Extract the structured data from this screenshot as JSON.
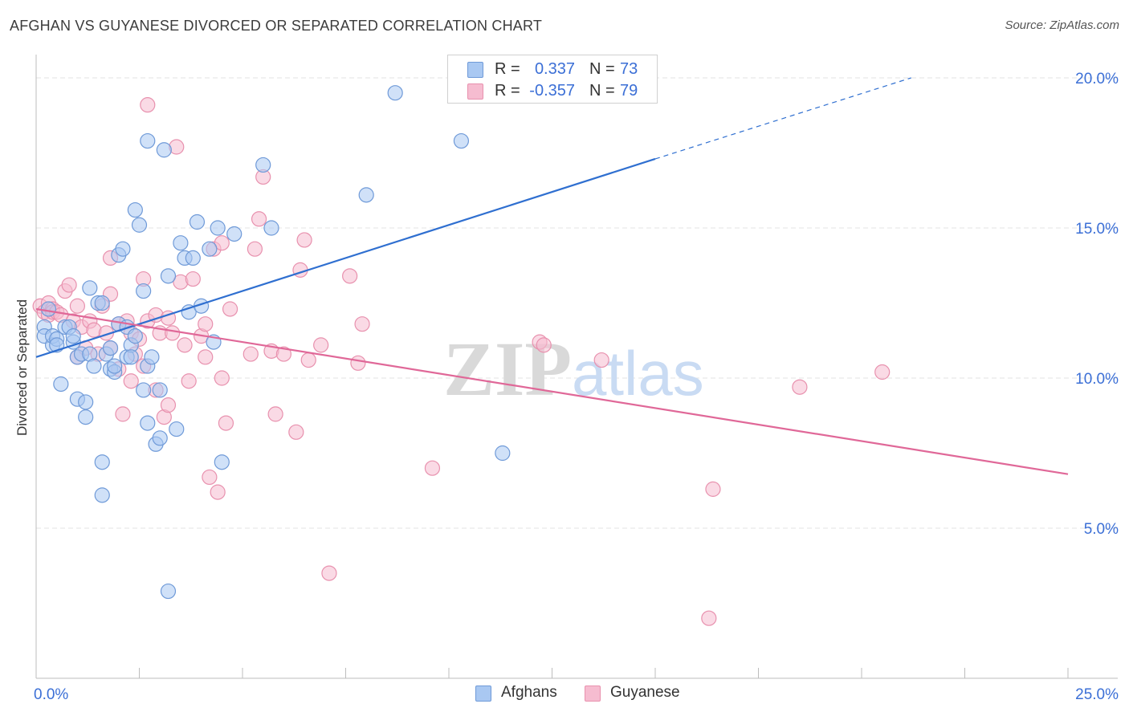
{
  "title": "AFGHAN VS GUYANESE DIVORCED OR SEPARATED CORRELATION CHART",
  "source": "Source: ZipAtlas.com",
  "watermark": {
    "zip": "ZIP",
    "atlas": "atlas"
  },
  "colors": {
    "afghans_fill": "#a9c8f2",
    "afghans_stroke": "#6f9ad8",
    "afghans_line": "#2f6fd0",
    "guyanese_fill": "#f6bcd0",
    "guyanese_stroke": "#e891ae",
    "guyanese_line": "#e06898",
    "tick_label": "#3b6fd6",
    "grid": "#e3e3e3"
  },
  "legend_top": [
    {
      "r_label": "R =",
      "r_value": "0.337",
      "n_label": "N =",
      "n_value": "73"
    },
    {
      "r_label": "R =",
      "r_value": "-0.357",
      "n_label": "N =",
      "n_value": "79"
    }
  ],
  "legend_bottom": [
    "Afghans",
    "Guyanese"
  ],
  "chart_data": {
    "type": "scatter",
    "title": "AFGHAN VS GUYANESE DIVORCED OR SEPARATED CORRELATION CHART",
    "xlabel": "",
    "ylabel": "Divorced or Separated",
    "xlim": [
      0,
      25
    ],
    "ylim": [
      0,
      20.5
    ],
    "x_ticks": [
      0,
      25
    ],
    "x_tick_labels": [
      "0.0%",
      "25.0%"
    ],
    "y_ticks": [
      5,
      10,
      15,
      20
    ],
    "y_tick_labels": [
      "5.0%",
      "10.0%",
      "15.0%",
      "20.0%"
    ],
    "grid": true,
    "legend_placement": "top-center",
    "series": [
      {
        "name": "Afghans",
        "r": 0.337,
        "n": 73,
        "trend": {
          "x0": 0,
          "y0": 10.7,
          "x1": 15,
          "y1": 17.3,
          "dashed_to_x": 21.2,
          "dashed_to_y": 20.0
        },
        "points": [
          [
            0.2,
            11.7
          ],
          [
            0.2,
            11.4
          ],
          [
            0.3,
            12.3
          ],
          [
            0.4,
            11.1
          ],
          [
            0.4,
            11.4
          ],
          [
            0.5,
            11.3
          ],
          [
            0.5,
            11.1
          ],
          [
            0.6,
            9.8
          ],
          [
            0.7,
            11.7
          ],
          [
            0.8,
            11.7
          ],
          [
            0.9,
            11.2
          ],
          [
            0.9,
            11.4
          ],
          [
            1.0,
            10.7
          ],
          [
            1.0,
            9.3
          ],
          [
            1.1,
            10.8
          ],
          [
            1.2,
            9.2
          ],
          [
            1.2,
            8.7
          ],
          [
            1.3,
            13.0
          ],
          [
            1.3,
            10.8
          ],
          [
            1.4,
            10.4
          ],
          [
            1.5,
            12.5
          ],
          [
            1.6,
            12.5
          ],
          [
            1.6,
            7.2
          ],
          [
            1.6,
            6.1
          ],
          [
            1.7,
            10.8
          ],
          [
            1.8,
            10.3
          ],
          [
            1.8,
            11.0
          ],
          [
            1.9,
            10.2
          ],
          [
            1.9,
            10.4
          ],
          [
            2.0,
            11.8
          ],
          [
            2.0,
            14.1
          ],
          [
            2.1,
            14.3
          ],
          [
            2.2,
            10.7
          ],
          [
            2.2,
            11.7
          ],
          [
            2.3,
            11.1
          ],
          [
            2.3,
            10.7
          ],
          [
            2.4,
            11.4
          ],
          [
            2.4,
            15.6
          ],
          [
            2.5,
            15.1
          ],
          [
            2.6,
            12.9
          ],
          [
            2.6,
            9.6
          ],
          [
            2.7,
            8.5
          ],
          [
            2.7,
            17.9
          ],
          [
            2.7,
            10.4
          ],
          [
            2.8,
            10.7
          ],
          [
            2.9,
            7.8
          ],
          [
            3.0,
            8.0
          ],
          [
            3.0,
            9.6
          ],
          [
            3.1,
            17.6
          ],
          [
            3.2,
            13.4
          ],
          [
            3.2,
            2.9
          ],
          [
            3.4,
            8.3
          ],
          [
            3.5,
            14.5
          ],
          [
            3.6,
            14.0
          ],
          [
            3.7,
            12.2
          ],
          [
            3.8,
            14.0
          ],
          [
            3.9,
            15.2
          ],
          [
            4.0,
            12.4
          ],
          [
            4.2,
            14.3
          ],
          [
            4.3,
            11.2
          ],
          [
            4.4,
            15.0
          ],
          [
            4.5,
            7.2
          ],
          [
            4.8,
            14.8
          ],
          [
            5.5,
            17.1
          ],
          [
            5.7,
            15.0
          ],
          [
            8.0,
            16.1
          ],
          [
            8.7,
            19.5
          ],
          [
            10.3,
            17.9
          ],
          [
            11.3,
            7.5
          ]
        ]
      },
      {
        "name": "Guyanese",
        "r": -0.357,
        "n": 79,
        "trend": {
          "x0": 0,
          "y0": 12.3,
          "x1": 25,
          "y1": 6.8
        },
        "points": [
          [
            0.1,
            12.4
          ],
          [
            0.2,
            12.2
          ],
          [
            0.3,
            12.1
          ],
          [
            0.3,
            12.5
          ],
          [
            0.4,
            12.3
          ],
          [
            0.4,
            12.2
          ],
          [
            0.5,
            12.2
          ],
          [
            0.6,
            12.1
          ],
          [
            0.7,
            12.9
          ],
          [
            0.8,
            13.1
          ],
          [
            0.9,
            11.9
          ],
          [
            1.0,
            12.4
          ],
          [
            1.0,
            10.7
          ],
          [
            1.1,
            11.7
          ],
          [
            1.2,
            11.0
          ],
          [
            1.3,
            11.9
          ],
          [
            1.4,
            11.6
          ],
          [
            1.5,
            10.8
          ],
          [
            1.6,
            12.4
          ],
          [
            1.7,
            11.5
          ],
          [
            1.8,
            12.8
          ],
          [
            1.8,
            11.0
          ],
          [
            1.8,
            14.0
          ],
          [
            2.0,
            10.3
          ],
          [
            2.0,
            11.8
          ],
          [
            2.1,
            8.8
          ],
          [
            2.2,
            11.9
          ],
          [
            2.3,
            11.5
          ],
          [
            2.3,
            9.9
          ],
          [
            2.4,
            10.8
          ],
          [
            2.5,
            11.3
          ],
          [
            2.6,
            10.4
          ],
          [
            2.6,
            13.3
          ],
          [
            2.7,
            11.9
          ],
          [
            2.7,
            19.1
          ],
          [
            2.9,
            9.6
          ],
          [
            2.9,
            12.1
          ],
          [
            3.0,
            11.5
          ],
          [
            3.1,
            8.7
          ],
          [
            3.2,
            12.0
          ],
          [
            3.2,
            9.1
          ],
          [
            3.3,
            11.5
          ],
          [
            3.4,
            17.7
          ],
          [
            3.5,
            13.2
          ],
          [
            3.6,
            11.1
          ],
          [
            3.7,
            9.9
          ],
          [
            3.8,
            13.3
          ],
          [
            4.0,
            11.4
          ],
          [
            4.1,
            10.7
          ],
          [
            4.1,
            11.8
          ],
          [
            4.2,
            6.7
          ],
          [
            4.3,
            14.3
          ],
          [
            4.4,
            6.2
          ],
          [
            4.5,
            14.5
          ],
          [
            4.5,
            10.0
          ],
          [
            4.6,
            8.5
          ],
          [
            4.7,
            12.3
          ],
          [
            5.2,
            10.8
          ],
          [
            5.3,
            14.3
          ],
          [
            5.4,
            15.3
          ],
          [
            5.5,
            16.7
          ],
          [
            5.7,
            10.9
          ],
          [
            5.8,
            8.8
          ],
          [
            6.0,
            10.8
          ],
          [
            6.3,
            8.2
          ],
          [
            6.4,
            13.6
          ],
          [
            6.5,
            14.6
          ],
          [
            6.6,
            10.6
          ],
          [
            6.9,
            11.1
          ],
          [
            7.1,
            3.5
          ],
          [
            7.6,
            13.4
          ],
          [
            7.8,
            10.5
          ],
          [
            7.9,
            11.8
          ],
          [
            9.6,
            7.0
          ],
          [
            12.2,
            11.2
          ],
          [
            12.3,
            11.1
          ],
          [
            13.7,
            10.6
          ],
          [
            16.4,
            6.3
          ],
          [
            16.3,
            2.0
          ],
          [
            18.5,
            9.7
          ],
          [
            20.5,
            10.2
          ]
        ]
      }
    ]
  }
}
